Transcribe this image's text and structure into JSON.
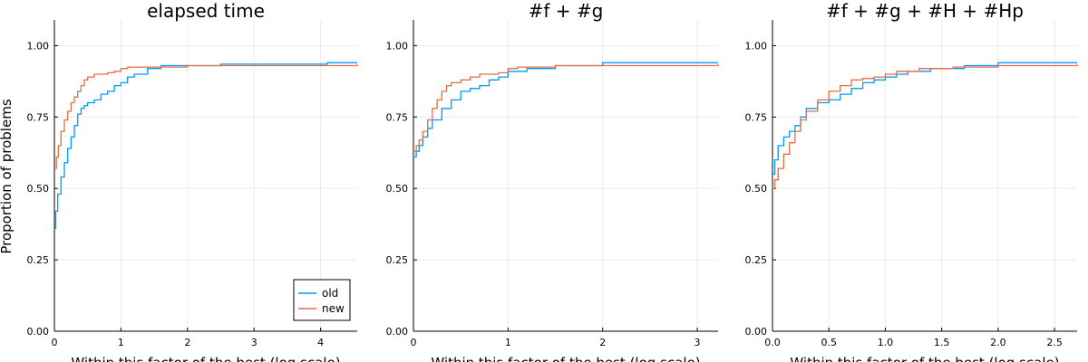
{
  "figure": {
    "ylabel": "Proportion of problems",
    "xlabel": "Within this factor of the best (log scale)",
    "colors": {
      "old": "#009af9",
      "new": "#e26f46"
    },
    "legend": {
      "placement": "bottom-right",
      "entries": [
        "old",
        "new"
      ]
    }
  },
  "chart_data": [
    {
      "type": "line",
      "title": "elapsed time",
      "xlabel": "Within this factor of the best (log scale)",
      "ylabel": "Proportion of problems",
      "xlim": [
        0,
        4.55
      ],
      "ylim": [
        0,
        1.09
      ],
      "xticks": [
        0,
        1,
        2,
        3,
        4
      ],
      "xtick_labels": [
        "0",
        "1",
        "2",
        "3",
        "4"
      ],
      "yticks": [
        0,
        0.25,
        0.5,
        0.75,
        1.0
      ],
      "ytick_labels": [
        "0.00",
        "0.25",
        "0.50",
        "0.75",
        "1.00"
      ],
      "grid": true,
      "legend": "bottom-right",
      "step": true,
      "series": [
        {
          "name": "old",
          "x": [
            0,
            0.02,
            0.05,
            0.1,
            0.15,
            0.2,
            0.25,
            0.3,
            0.35,
            0.4,
            0.45,
            0.5,
            0.6,
            0.7,
            0.8,
            0.9,
            1.0,
            1.1,
            1.2,
            1.4,
            1.6,
            2.0,
            2.5,
            4.1,
            4.55
          ],
          "y": [
            0.36,
            0.42,
            0.48,
            0.54,
            0.59,
            0.64,
            0.68,
            0.72,
            0.76,
            0.78,
            0.79,
            0.8,
            0.81,
            0.83,
            0.84,
            0.86,
            0.87,
            0.89,
            0.9,
            0.92,
            0.93,
            0.93,
            0.935,
            0.94,
            0.94
          ]
        },
        {
          "name": "new",
          "x": [
            0,
            0.03,
            0.06,
            0.1,
            0.15,
            0.2,
            0.25,
            0.3,
            0.35,
            0.4,
            0.45,
            0.5,
            0.6,
            0.8,
            0.9,
            1.0,
            1.1,
            1.5,
            2.0,
            3.0,
            4.55
          ],
          "y": [
            0.57,
            0.61,
            0.65,
            0.7,
            0.74,
            0.77,
            0.8,
            0.82,
            0.84,
            0.86,
            0.88,
            0.89,
            0.9,
            0.905,
            0.91,
            0.92,
            0.925,
            0.925,
            0.93,
            0.93,
            0.935
          ]
        }
      ]
    },
    {
      "type": "line",
      "title": "#f + #g",
      "xlabel": "Within this factor of the best (log scale)",
      "ylabel": "",
      "xlim": [
        0,
        3.22
      ],
      "ylim": [
        0,
        1.09
      ],
      "xticks": [
        0,
        1,
        2,
        3
      ],
      "xtick_labels": [
        "0",
        "1",
        "2",
        "3"
      ],
      "yticks": [
        0,
        0.25,
        0.5,
        0.75,
        1.0
      ],
      "ytick_labels": [
        "0.00",
        "0.25",
        "0.50",
        "0.75",
        "1.00"
      ],
      "grid": true,
      "step": true,
      "series": [
        {
          "name": "old",
          "x": [
            0,
            0.03,
            0.06,
            0.1,
            0.15,
            0.2,
            0.3,
            0.4,
            0.5,
            0.6,
            0.7,
            0.8,
            0.9,
            1.0,
            1.2,
            1.5,
            2.0,
            3.22
          ],
          "y": [
            0.61,
            0.63,
            0.65,
            0.68,
            0.71,
            0.74,
            0.78,
            0.81,
            0.84,
            0.85,
            0.86,
            0.88,
            0.89,
            0.91,
            0.92,
            0.93,
            0.94,
            0.94
          ]
        },
        {
          "name": "new",
          "x": [
            0,
            0.03,
            0.06,
            0.1,
            0.15,
            0.2,
            0.25,
            0.3,
            0.35,
            0.4,
            0.5,
            0.6,
            0.7,
            0.8,
            0.9,
            1.0,
            1.1,
            1.5,
            2.0,
            3.22
          ],
          "y": [
            0.63,
            0.65,
            0.67,
            0.7,
            0.74,
            0.78,
            0.81,
            0.84,
            0.86,
            0.87,
            0.88,
            0.89,
            0.9,
            0.9,
            0.905,
            0.92,
            0.925,
            0.93,
            0.93,
            0.935
          ]
        }
      ]
    },
    {
      "type": "line",
      "title": "#f + #g + #H + #Hp",
      "xlabel": "Within this factor of the best (log scale)",
      "ylabel": "",
      "xlim": [
        0,
        2.7
      ],
      "ylim": [
        0,
        1.09
      ],
      "xticks": [
        0,
        0.5,
        1.0,
        1.5,
        2.0,
        2.5
      ],
      "xtick_labels": [
        "0.0",
        "0.5",
        "1.0",
        "1.5",
        "2.0",
        "2.5"
      ],
      "yticks": [
        0,
        0.25,
        0.5,
        0.75,
        1.0
      ],
      "ytick_labels": [
        "0.00",
        "0.25",
        "0.50",
        "0.75",
        "1.00"
      ],
      "grid": true,
      "step": true,
      "series": [
        {
          "name": "old",
          "x": [
            0,
            0.02,
            0.05,
            0.1,
            0.15,
            0.2,
            0.25,
            0.3,
            0.4,
            0.5,
            0.6,
            0.7,
            0.8,
            0.9,
            1.0,
            1.1,
            1.2,
            1.4,
            1.7,
            2.0,
            2.7
          ],
          "y": [
            0.55,
            0.6,
            0.65,
            0.68,
            0.7,
            0.72,
            0.75,
            0.78,
            0.8,
            0.81,
            0.83,
            0.85,
            0.87,
            0.88,
            0.89,
            0.9,
            0.91,
            0.92,
            0.93,
            0.94,
            0.94
          ]
        },
        {
          "name": "new",
          "x": [
            0,
            0.02,
            0.05,
            0.1,
            0.15,
            0.2,
            0.25,
            0.3,
            0.4,
            0.5,
            0.6,
            0.7,
            0.8,
            0.9,
            1.0,
            1.1,
            1.3,
            1.6,
            2.0,
            2.7
          ],
          "y": [
            0.5,
            0.53,
            0.57,
            0.62,
            0.66,
            0.7,
            0.74,
            0.77,
            0.81,
            0.84,
            0.86,
            0.88,
            0.885,
            0.89,
            0.9,
            0.91,
            0.92,
            0.925,
            0.93,
            0.935
          ]
        }
      ]
    }
  ]
}
